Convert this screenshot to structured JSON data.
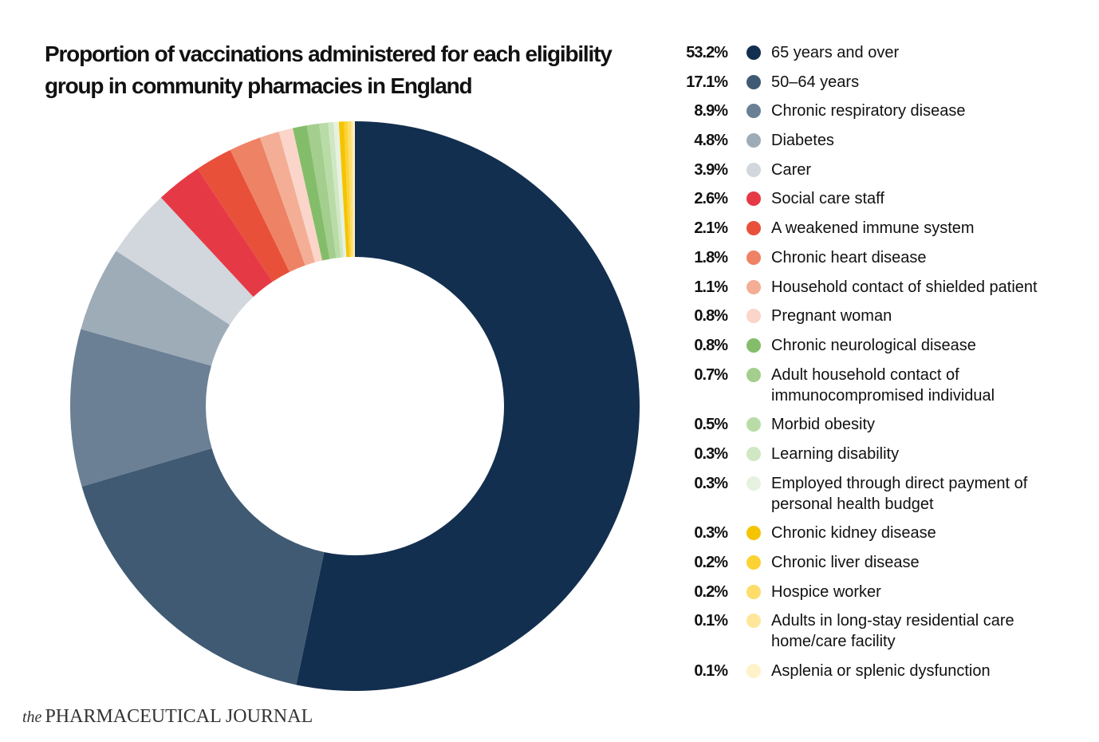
{
  "chart_data": {
    "type": "donut",
    "title": "Proportion of vaccinations administered for each eligibility group in community pharmacies in England",
    "categories": [
      "65 years and over",
      "50–64 years",
      "Chronic respiratory disease",
      "Diabetes",
      "Carer",
      "Social care staff",
      "A weakened immune system",
      "Chronic heart disease",
      "Household contact of shielded patient",
      "Pregnant woman",
      "Chronic neurological disease",
      "Adult household contact of immunocompromised individual",
      "Morbid obesity",
      "Learning disability",
      "Employed through direct payment of personal health budget",
      "Chronic kidney disease",
      "Chronic liver disease",
      "Hospice worker",
      "Adults in long-stay residential care home/care facility",
      "Asplenia or splenic dysfunction"
    ],
    "values": [
      53.2,
      17.1,
      8.9,
      4.8,
      3.9,
      2.6,
      2.1,
      1.8,
      1.1,
      0.8,
      0.8,
      0.7,
      0.5,
      0.3,
      0.3,
      0.3,
      0.2,
      0.2,
      0.1,
      0.1
    ],
    "value_labels": [
      "53.2%",
      "17.1%",
      "8.9%",
      "4.8%",
      "3.9%",
      "2.6%",
      "2.1%",
      "1.8%",
      "1.1%",
      "0.8%",
      "0.8%",
      "0.7%",
      "0.5%",
      "0.3%",
      "0.3%",
      "0.3%",
      "0.2%",
      "0.2%",
      "0.1%",
      "0.1%"
    ],
    "colors": [
      "#132f4f",
      "#405a73",
      "#6b8094",
      "#9eacb8",
      "#d1d7dd",
      "#e63946",
      "#e8503a",
      "#ee8264",
      "#f4ae96",
      "#fbd5c9",
      "#84bd6a",
      "#a3ce8e",
      "#b9dca7",
      "#d0e7c4",
      "#e6f2df",
      "#f5c400",
      "#fcd234",
      "#fddd6a",
      "#fee79a",
      "#fff2c9"
    ],
    "source_prefix": "the",
    "source": "PHARMACEUTICAL JOURNAL"
  }
}
